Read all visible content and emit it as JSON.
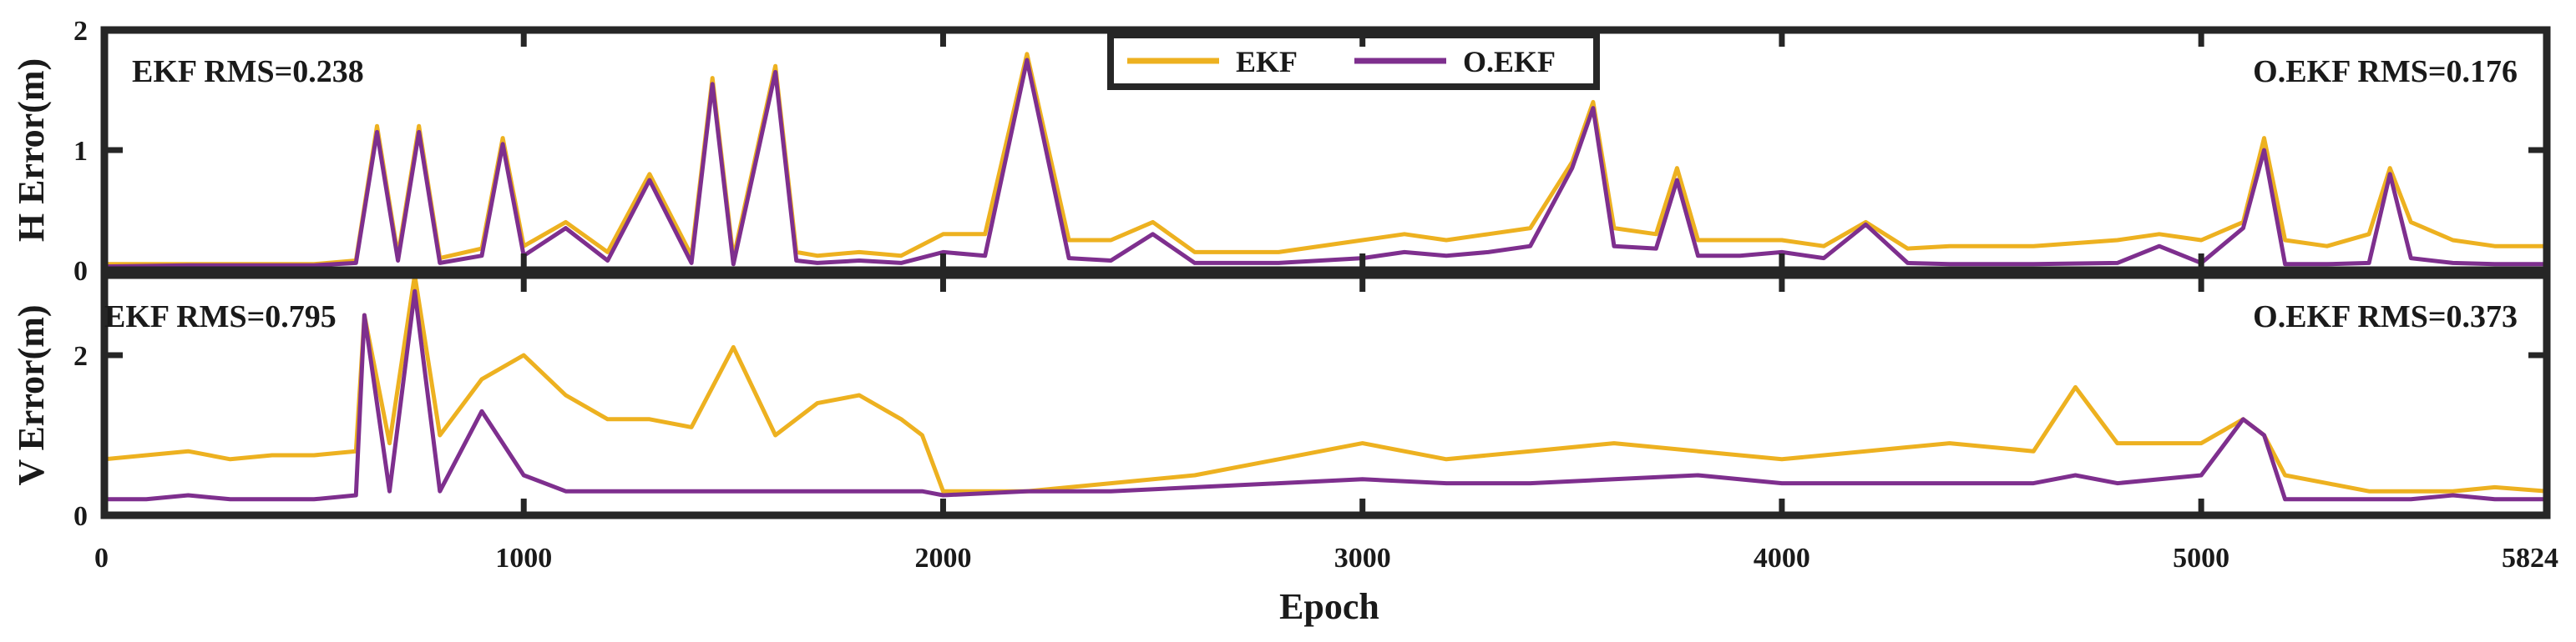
{
  "chart_data": [
    {
      "type": "line",
      "panel": "top",
      "ylabel": "H Error(m)",
      "xlabel": "",
      "xlim": [
        0,
        5824
      ],
      "ylim": [
        0,
        2
      ],
      "yticks": [
        "0",
        "1",
        "2"
      ],
      "annotations": {
        "left": "EKF RMS=0.238",
        "right": "O.EKF RMS=0.176"
      },
      "legend": {
        "position": "top-center",
        "entries": [
          "EKF",
          "O.EKF"
        ]
      },
      "series": [
        {
          "name": "EKF",
          "color": "#EDB120",
          "x": [
            0,
            200,
            500,
            600,
            650,
            700,
            750,
            800,
            900,
            950,
            1000,
            1100,
            1200,
            1300,
            1400,
            1450,
            1500,
            1600,
            1650,
            1700,
            1800,
            1900,
            2000,
            2100,
            2200,
            2300,
            2400,
            2500,
            2600,
            2800,
            3000,
            3100,
            3200,
            3300,
            3400,
            3500,
            3550,
            3600,
            3700,
            3750,
            3800,
            3900,
            4000,
            4100,
            4200,
            4300,
            4400,
            4500,
            4600,
            4800,
            4900,
            5000,
            5100,
            5150,
            5200,
            5300,
            5400,
            5450,
            5500,
            5600,
            5700,
            5824
          ],
          "y": [
            0.05,
            0.05,
            0.05,
            0.08,
            1.2,
            0.12,
            1.2,
            0.1,
            0.18,
            1.1,
            0.2,
            0.4,
            0.15,
            0.8,
            0.12,
            1.6,
            0.1,
            1.7,
            0.15,
            0.12,
            0.15,
            0.12,
            0.3,
            0.3,
            1.8,
            0.25,
            0.25,
            0.4,
            0.15,
            0.15,
            0.25,
            0.3,
            0.25,
            0.3,
            0.35,
            0.9,
            1.4,
            0.35,
            0.3,
            0.85,
            0.25,
            0.25,
            0.25,
            0.2,
            0.4,
            0.18,
            0.2,
            0.2,
            0.2,
            0.25,
            0.3,
            0.25,
            0.4,
            1.1,
            0.25,
            0.2,
            0.3,
            0.85,
            0.4,
            0.25,
            0.2,
            0.2
          ]
        },
        {
          "name": "O.EKF",
          "color": "#7E2F8E",
          "x": [
            0,
            200,
            500,
            600,
            650,
            700,
            750,
            800,
            900,
            950,
            1000,
            1100,
            1200,
            1300,
            1400,
            1450,
            1500,
            1600,
            1650,
            1700,
            1800,
            1900,
            2000,
            2100,
            2200,
            2300,
            2400,
            2500,
            2600,
            2800,
            3000,
            3100,
            3200,
            3300,
            3400,
            3500,
            3550,
            3600,
            3700,
            3750,
            3800,
            3900,
            4000,
            4100,
            4200,
            4300,
            4400,
            4500,
            4600,
            4800,
            4900,
            5000,
            5100,
            5150,
            5200,
            5300,
            5400,
            5450,
            5500,
            5600,
            5700,
            5824
          ],
          "y": [
            0.03,
            0.04,
            0.04,
            0.06,
            1.15,
            0.08,
            1.15,
            0.06,
            0.12,
            1.05,
            0.12,
            0.35,
            0.08,
            0.75,
            0.06,
            1.55,
            0.05,
            1.65,
            0.08,
            0.06,
            0.08,
            0.06,
            0.15,
            0.12,
            1.75,
            0.1,
            0.08,
            0.3,
            0.06,
            0.06,
            0.1,
            0.15,
            0.12,
            0.15,
            0.2,
            0.85,
            1.35,
            0.2,
            0.18,
            0.75,
            0.12,
            0.12,
            0.15,
            0.1,
            0.38,
            0.06,
            0.05,
            0.05,
            0.05,
            0.06,
            0.2,
            0.06,
            0.35,
            1.0,
            0.05,
            0.05,
            0.06,
            0.8,
            0.1,
            0.06,
            0.05,
            0.05
          ]
        }
      ]
    },
    {
      "type": "line",
      "panel": "bottom",
      "ylabel": "V Error(m)",
      "xlabel": "Epoch",
      "xlim": [
        0,
        5824
      ],
      "ylim": [
        0,
        3
      ],
      "yticks": [
        "0",
        "2"
      ],
      "xticks": [
        "0",
        "1000",
        "2000",
        "3000",
        "4000",
        "5000",
        "5824"
      ],
      "annotations": {
        "left": "EKF RMS=0.795",
        "right": "O.EKF RMS=0.373"
      },
      "series": [
        {
          "name": "EKF",
          "color": "#EDB120",
          "x": [
            0,
            100,
            200,
            300,
            400,
            500,
            600,
            620,
            680,
            740,
            800,
            900,
            1000,
            1100,
            1200,
            1300,
            1400,
            1500,
            1600,
            1700,
            1800,
            1900,
            1950,
            2000,
            2200,
            2400,
            2600,
            2800,
            3000,
            3200,
            3400,
            3600,
            3800,
            4000,
            4200,
            4400,
            4600,
            4700,
            4800,
            5000,
            5100,
            5150,
            5200,
            5300,
            5400,
            5500,
            5600,
            5700,
            5824
          ],
          "y": [
            0.7,
            0.75,
            0.8,
            0.7,
            0.75,
            0.75,
            0.8,
            2.5,
            0.9,
            3.0,
            1.0,
            1.7,
            2.0,
            1.5,
            1.2,
            1.2,
            1.1,
            2.1,
            1.0,
            1.4,
            1.5,
            1.2,
            1.0,
            0.3,
            0.3,
            0.4,
            0.5,
            0.7,
            0.9,
            0.7,
            0.8,
            0.9,
            0.8,
            0.7,
            0.8,
            0.9,
            0.8,
            1.6,
            0.9,
            0.9,
            1.2,
            1.0,
            0.5,
            0.4,
            0.3,
            0.3,
            0.3,
            0.35,
            0.3
          ]
        },
        {
          "name": "O.EKF",
          "color": "#7E2F8E",
          "x": [
            0,
            100,
            200,
            300,
            400,
            500,
            600,
            620,
            680,
            740,
            800,
            900,
            1000,
            1100,
            1200,
            1300,
            1400,
            1500,
            1600,
            1700,
            1800,
            1900,
            1950,
            2000,
            2200,
            2400,
            2600,
            2800,
            3000,
            3200,
            3400,
            3600,
            3800,
            4000,
            4200,
            4400,
            4600,
            4700,
            4800,
            5000,
            5100,
            5150,
            5200,
            5300,
            5400,
            5500,
            5600,
            5700,
            5824
          ],
          "y": [
            0.2,
            0.2,
            0.25,
            0.2,
            0.2,
            0.2,
            0.25,
            2.5,
            0.3,
            2.8,
            0.3,
            1.3,
            0.5,
            0.3,
            0.3,
            0.3,
            0.3,
            0.3,
            0.3,
            0.3,
            0.3,
            0.3,
            0.3,
            0.25,
            0.3,
            0.3,
            0.35,
            0.4,
            0.45,
            0.4,
            0.4,
            0.45,
            0.5,
            0.4,
            0.4,
            0.4,
            0.4,
            0.5,
            0.4,
            0.5,
            1.2,
            1.0,
            0.2,
            0.2,
            0.2,
            0.2,
            0.25,
            0.2,
            0.2
          ]
        }
      ]
    }
  ]
}
